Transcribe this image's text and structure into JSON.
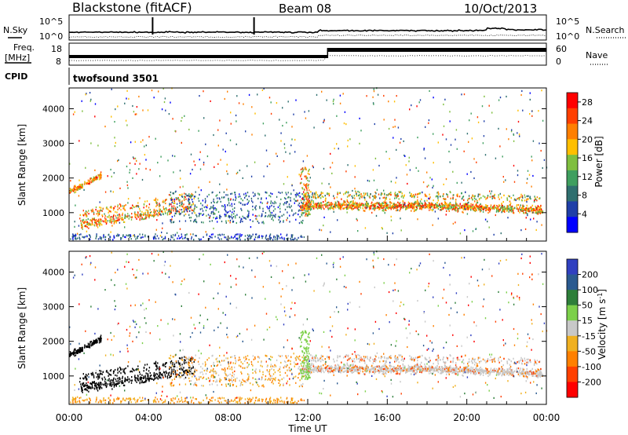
{
  "header": {
    "title": "Blackstone (fitACF)",
    "beam": "Beam 08",
    "date": "10/Oct/2013"
  },
  "noise_panel": {
    "left_label": "N.Sky",
    "right_label": "N.Search",
    "left_ticks": [
      "10^5",
      "10^0"
    ],
    "right_ticks": [
      "10^5",
      "10^0"
    ]
  },
  "freq_panel": {
    "left_label_line1": "Freq.",
    "left_label_line2": "[MHz]",
    "left_ticks": [
      "18",
      "8"
    ],
    "right_label": "Nave",
    "right_ticks": [
      "60",
      "0"
    ],
    "cpid_label": "CPID",
    "cpid_value": "twofsound 3501"
  },
  "colors": {
    "power_scale": [
      "#0000ff",
      "#1f3fa8",
      "#2f6f6f",
      "#3f9f5f",
      "#7fbf3f",
      "#ffbf00",
      "#ff7f00",
      "#ff3f00",
      "#ff0000"
    ],
    "velocity_scale": [
      "#3040c0",
      "#2a5a90",
      "#2e7f3a",
      "#7cd04a",
      "#c8c8c8",
      "#f0b020",
      "#ff8000",
      "#ff4000",
      "#ff0000"
    ]
  },
  "chart_data": [
    {
      "type": "heatmap",
      "panel": "power",
      "ylabel": "Slant Range [km]",
      "x_ticks": [
        "00:00",
        "04:00",
        "08:00",
        "12:00",
        "16:00",
        "20:00",
        "00:00"
      ],
      "x_range_hours": [
        0,
        24
      ],
      "y_ticks": [
        1000,
        2000,
        3000,
        4000
      ],
      "ylim": [
        180,
        4600
      ],
      "colorbar": {
        "label": "Power [dB]",
        "ticks": [
          4,
          8,
          12,
          16,
          20,
          24,
          28
        ],
        "range": [
          0,
          30
        ]
      }
    },
    {
      "type": "heatmap",
      "panel": "velocity",
      "ylabel": "Slant Range [km]",
      "xlabel": "Time UT",
      "x_ticks": [
        "00:00",
        "04:00",
        "08:00",
        "12:00",
        "16:00",
        "20:00",
        "00:00"
      ],
      "x_range_hours": [
        0,
        24
      ],
      "y_ticks": [
        1000,
        2000,
        3000,
        4000
      ],
      "ylim": [
        180,
        4600
      ],
      "colorbar": {
        "label": "Velocity [m s^-1]",
        "ticks": [
          200,
          100,
          50,
          15,
          -15,
          -50,
          -100,
          -200
        ]
      }
    }
  ]
}
